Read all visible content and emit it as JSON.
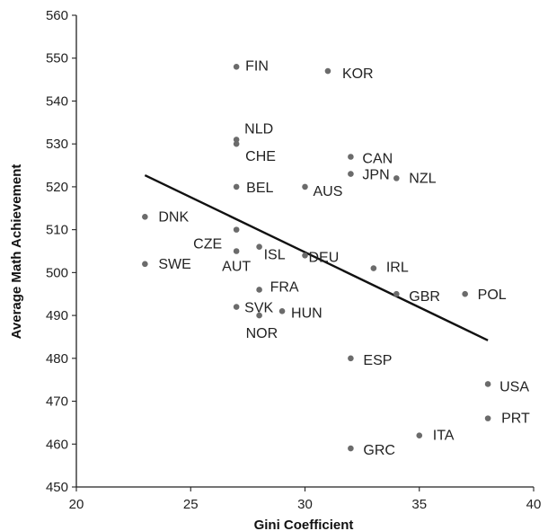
{
  "chart_data": {
    "type": "scatter",
    "xlabel": "Gini Coefficient",
    "ylabel": "Average Math Achievement",
    "xlim": [
      20,
      40
    ],
    "ylim": [
      450,
      560
    ],
    "xticks": [
      20,
      25,
      30,
      35,
      40
    ],
    "yticks": [
      450,
      460,
      470,
      480,
      490,
      500,
      510,
      520,
      530,
      540,
      550,
      560
    ],
    "grid": false,
    "points": [
      {
        "label": "FIN",
        "x": 27,
        "y": 548
      },
      {
        "label": "KOR",
        "x": 31,
        "y": 547
      },
      {
        "label": "NLD",
        "x": 27,
        "y": 531
      },
      {
        "label": "CHE",
        "x": 27,
        "y": 530
      },
      {
        "label": "CAN",
        "x": 32,
        "y": 527
      },
      {
        "label": "JPN",
        "x": 32,
        "y": 523
      },
      {
        "label": "NZL",
        "x": 34,
        "y": 522
      },
      {
        "label": "BEL",
        "x": 27,
        "y": 520
      },
      {
        "label": "AUS",
        "x": 30,
        "y": 520
      },
      {
        "label": "DNK",
        "x": 23,
        "y": 513
      },
      {
        "label": "CZE",
        "x": 27,
        "y": 510
      },
      {
        "label": "AUT",
        "x": 27,
        "y": 505
      },
      {
        "label": "ISL",
        "x": 28,
        "y": 506
      },
      {
        "label": "DEU",
        "x": 30,
        "y": 504
      },
      {
        "label": "SWE",
        "x": 23,
        "y": 502
      },
      {
        "label": "IRL",
        "x": 33,
        "y": 501
      },
      {
        "label": "FRA",
        "x": 28,
        "y": 496
      },
      {
        "label": "GBR",
        "x": 34,
        "y": 495
      },
      {
        "label": "POL",
        "x": 37,
        "y": 495
      },
      {
        "label": "SVK",
        "x": 27,
        "y": 492
      },
      {
        "label": "HUN",
        "x": 29,
        "y": 491
      },
      {
        "label": "NOR",
        "x": 28,
        "y": 490
      },
      {
        "label": "ESP",
        "x": 32,
        "y": 480
      },
      {
        "label": "USA",
        "x": 38,
        "y": 474
      },
      {
        "label": "PRT",
        "x": 38,
        "y": 466
      },
      {
        "label": "ITA",
        "x": 35,
        "y": 462
      },
      {
        "label": "GRC",
        "x": 32,
        "y": 459
      }
    ],
    "trendline": {
      "x": [
        23,
        38
      ],
      "y": [
        522.7,
        484.2
      ]
    }
  }
}
